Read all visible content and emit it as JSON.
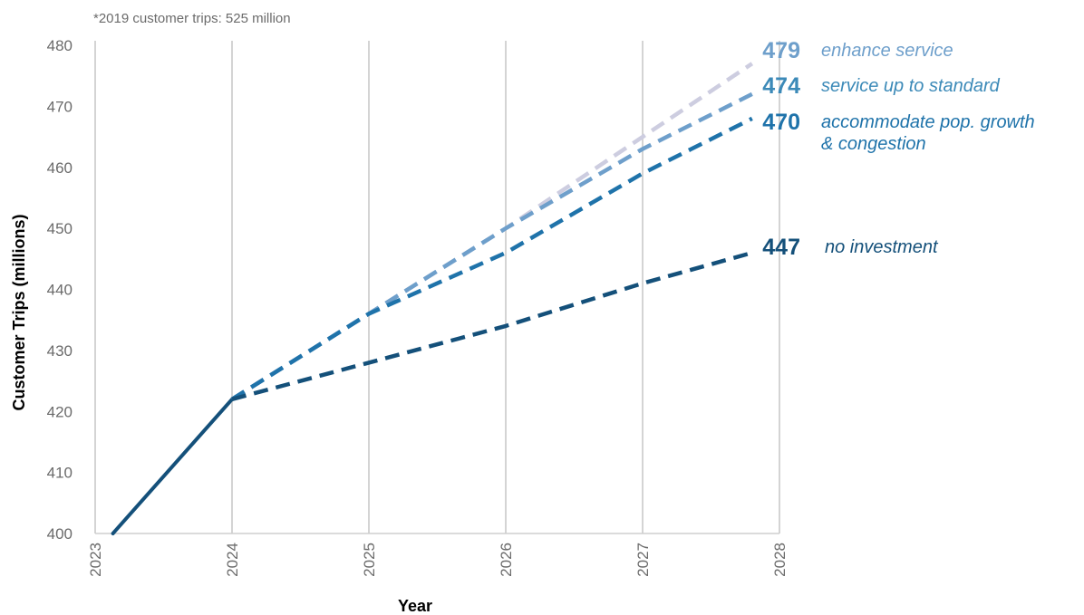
{
  "chart_data": {
    "type": "line",
    "note": "*2019 customer trips: 525 million",
    "xlabel": "Year",
    "ylabel": "Customer Trips (millions)",
    "x_ticks": [
      "2023",
      "2024",
      "2025",
      "2026",
      "2027",
      "2028"
    ],
    "ylim": [
      400,
      480
    ],
    "y_ticks": [
      400,
      410,
      420,
      430,
      440,
      450,
      460,
      470,
      480
    ],
    "xlim": [
      2023,
      2028
    ],
    "grid": "vertical",
    "historical": {
      "color": "#14507a",
      "points": [
        [
          2023.13,
          400
        ],
        [
          2024,
          422
        ]
      ]
    },
    "series": [
      {
        "label_lines": [
          "enhance service"
        ],
        "end_value": "479",
        "color": "#cdcde0",
        "label_color": "#6e9fcb",
        "points": [
          [
            2024,
            422
          ],
          [
            2025,
            436
          ],
          [
            2026,
            450
          ],
          [
            2027,
            465
          ],
          [
            2027.8,
            477
          ]
        ]
      },
      {
        "label_lines": [
          "service up to standard"
        ],
        "end_value": "474",
        "color": "#6e9fcb",
        "label_color": "#3c8ab8",
        "points": [
          [
            2024,
            422
          ],
          [
            2025,
            436
          ],
          [
            2026,
            450
          ],
          [
            2027,
            463
          ],
          [
            2027.8,
            472
          ]
        ]
      },
      {
        "label_lines": [
          "accommodate pop. growth",
          "& congestion"
        ],
        "end_value": "470",
        "color": "#1f73aa",
        "label_color": "#1f73aa",
        "points": [
          [
            2024,
            422
          ],
          [
            2025,
            436
          ],
          [
            2026,
            446
          ],
          [
            2027,
            459
          ],
          [
            2027.8,
            468
          ]
        ]
      },
      {
        "label_lines": [
          "no investment"
        ],
        "end_value": "447",
        "color": "#14507a",
        "label_color": "#14507a",
        "points": [
          [
            2024,
            422
          ],
          [
            2025,
            428
          ],
          [
            2026,
            434
          ],
          [
            2027,
            441
          ],
          [
            2027.8,
            446
          ]
        ]
      }
    ]
  }
}
